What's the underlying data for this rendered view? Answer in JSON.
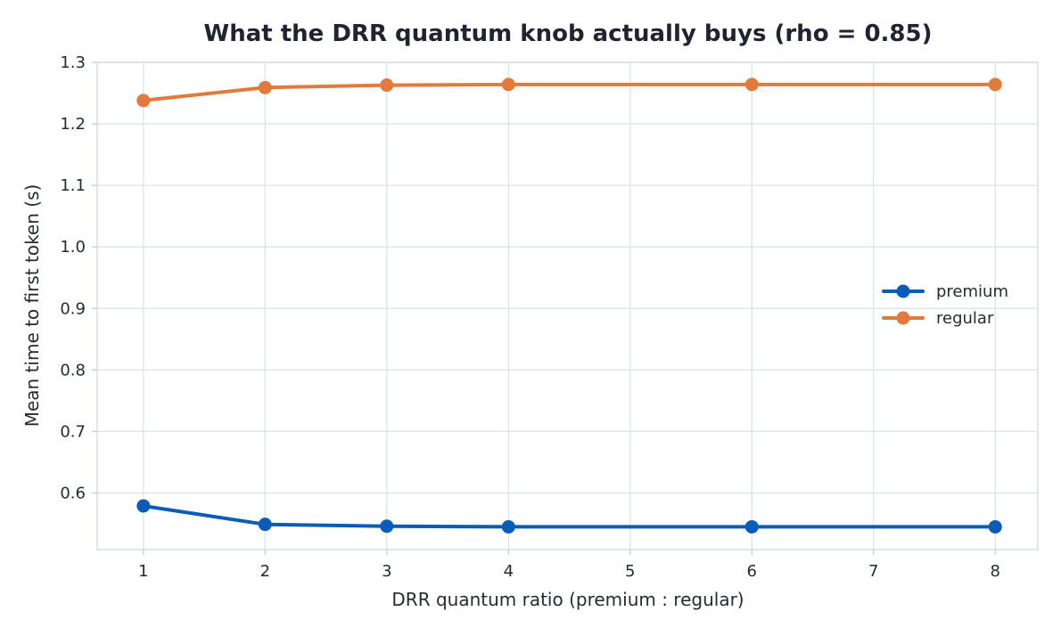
{
  "chart_data": {
    "type": "line",
    "title": "What the DRR quantum knob actually buys (rho = 0.85)",
    "xlabel": "DRR quantum ratio (premium : regular)",
    "ylabel": "Mean time to first token (s)",
    "xlim": [
      0.62,
      8.35
    ],
    "ylim": [
      0.508,
      1.3
    ],
    "xticks": [
      1,
      2,
      3,
      4,
      5,
      6,
      7,
      8
    ],
    "yticks": [
      0.6,
      0.7,
      0.8,
      0.9,
      1.0,
      1.1,
      1.2,
      1.3
    ],
    "ytick_labels": [
      "0.6",
      "0.7",
      "0.8",
      "0.9",
      "1.0",
      "1.1",
      "1.2",
      "1.3"
    ],
    "grid": true,
    "legend_position": "center-right",
    "x": [
      1,
      2,
      3,
      4,
      6,
      8
    ],
    "series": [
      {
        "name": "premium",
        "color": "#0a5cb8",
        "values": [
          0.579,
          0.549,
          0.546,
          0.545,
          0.545,
          0.545
        ]
      },
      {
        "name": "regular",
        "color": "#e07b3c",
        "values": [
          1.238,
          1.259,
          1.263,
          1.264,
          1.264,
          1.264
        ]
      }
    ]
  }
}
